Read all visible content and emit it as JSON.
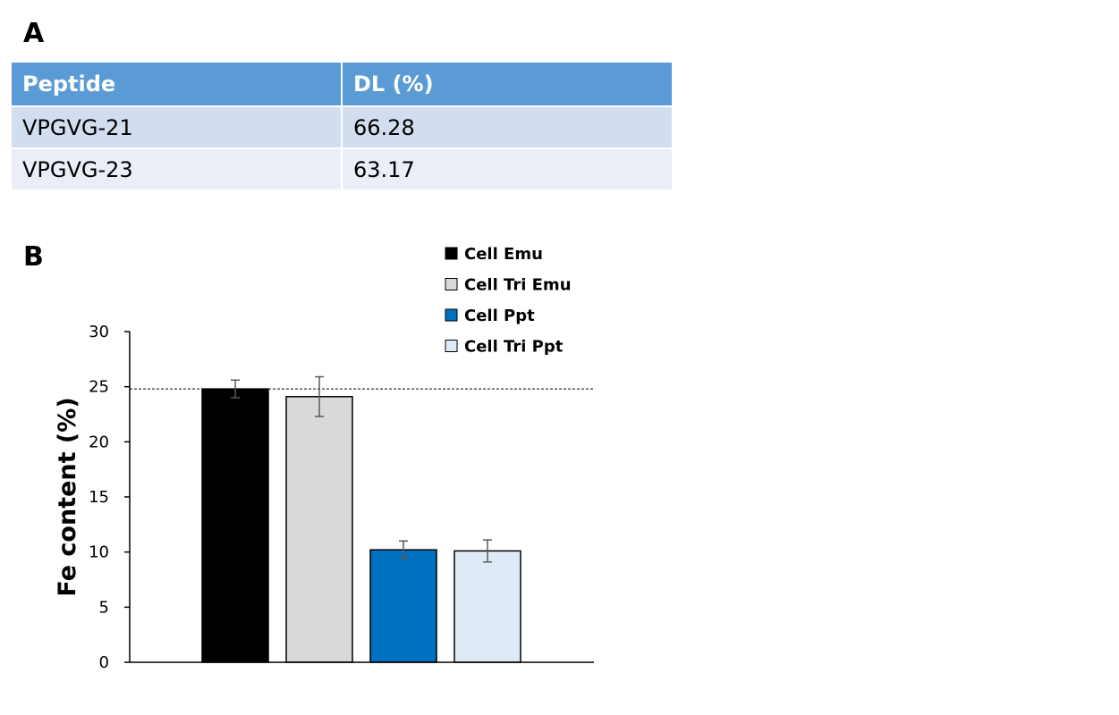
{
  "panel_a": {
    "label": "A",
    "table": {
      "headers": [
        "Peptide",
        "DL (%)"
      ],
      "rows": [
        [
          "VPGVG-21",
          "66.28"
        ],
        [
          "VPGVG-23",
          "63.17"
        ]
      ]
    }
  },
  "panel_b": {
    "label": "B"
  },
  "chart_data": {
    "type": "bar",
    "categories": [
      "Cell Emu",
      "Cell Tri Emu",
      "Cell Ppt",
      "Cell Tri Ppt"
    ],
    "values": [
      24.8,
      24.1,
      10.2,
      10.1
    ],
    "errors": [
      0.8,
      1.8,
      0.8,
      1.0
    ],
    "colors": [
      "#000000",
      "#d9d9d9",
      "#0070c0",
      "#deebf7"
    ],
    "legend": [
      "Cell Emu",
      "Cell Tri Emu",
      "Cell Ppt",
      "Cell Tri Ppt"
    ],
    "legend_position": "top-right",
    "title": "",
    "xlabel": "",
    "ylabel": "Fe content (%)",
    "ylim": [
      0,
      30
    ],
    "yticks": [
      0,
      5,
      10,
      15,
      20,
      25,
      30
    ],
    "reference_line": 24.8,
    "grid": false
  }
}
